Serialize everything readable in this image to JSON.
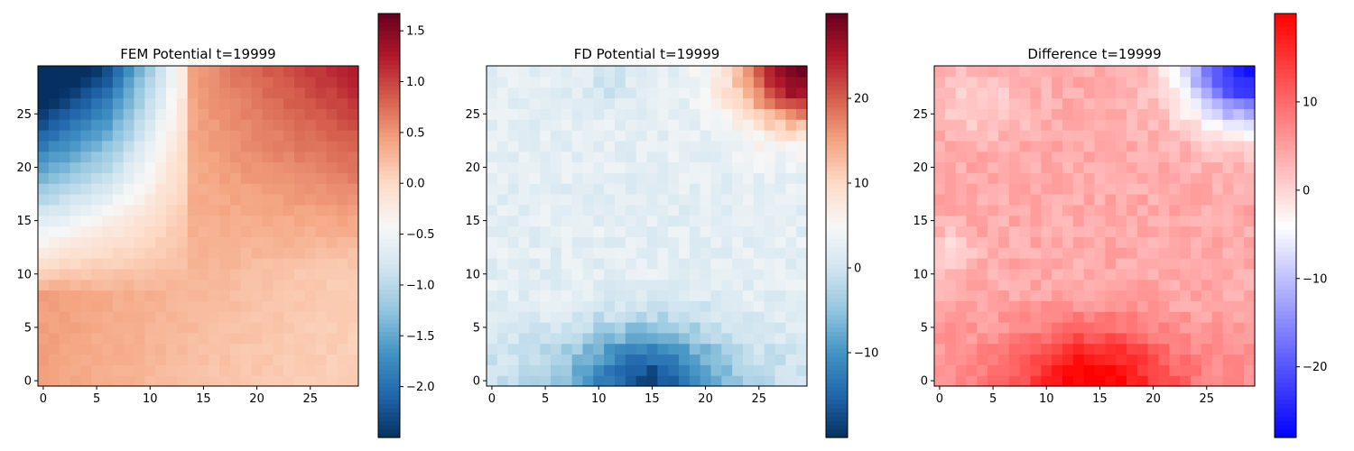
{
  "chart_data": [
    {
      "type": "heatmap",
      "title": "FEM Potential t=19999",
      "colormap": "RdBu_r",
      "grid_size": [
        30,
        30
      ],
      "x_range": [
        -0.5,
        29.5
      ],
      "y_range": [
        -0.5,
        29.5
      ],
      "x_ticks": [
        "0",
        "5",
        "10",
        "15",
        "20",
        "25"
      ],
      "y_ticks": [
        "0",
        "5",
        "10",
        "15",
        "20",
        "25"
      ],
      "colorbar": {
        "range": [
          -2.5,
          1.67
        ],
        "ticks": [
          {
            "value": -2.0,
            "label": "−2.0"
          },
          {
            "value": -1.5,
            "label": "−1.5"
          },
          {
            "value": -1.0,
            "label": "−1.0"
          },
          {
            "value": -0.5,
            "label": "−0.5"
          },
          {
            "value": 0.0,
            "label": "0.0"
          },
          {
            "value": 0.5,
            "label": "0.5"
          },
          {
            "value": 1.0,
            "label": "1.0"
          },
          {
            "value": 1.5,
            "label": "1.5"
          }
        ]
      },
      "field_description": "smooth field: ~-2.5 at top-left, ~+1.6 at top-right, ~+0.5 across bottom",
      "sample_values": {
        "bottom_left": 0.45,
        "bottom_right": 0.1,
        "top_left": -2.45,
        "top_right": 1.6,
        "center": 0.3
      }
    },
    {
      "type": "heatmap",
      "title": "FD Potential t=19999",
      "colormap": "RdBu_r",
      "grid_size": [
        30,
        30
      ],
      "x_range": [
        -0.5,
        29.5
      ],
      "y_range": [
        -0.5,
        29.5
      ],
      "x_ticks": [
        "0",
        "5",
        "10",
        "15",
        "20",
        "25"
      ],
      "y_ticks": [
        "0",
        "5",
        "10",
        "15",
        "20",
        "25"
      ],
      "colorbar": {
        "range": [
          -20,
          30
        ],
        "ticks": [
          {
            "value": -10,
            "label": "−10"
          },
          {
            "value": 0,
            "label": "0"
          },
          {
            "value": 10,
            "label": "10"
          },
          {
            "value": 20,
            "label": "20"
          }
        ]
      },
      "field_description": "mostly light blue (~0 to 3), darker blue minimum ~-20 near x=14,y=0, warm maximum ~29 at top-right corner",
      "sample_values": {
        "bottom_center_min": -19.5,
        "top_right_max": 29.0,
        "center": 1.0
      }
    },
    {
      "type": "heatmap",
      "title": "Difference t=19999",
      "colormap": "bwr",
      "grid_size": [
        30,
        30
      ],
      "x_range": [
        -0.5,
        29.5
      ],
      "y_range": [
        -0.5,
        29.5
      ],
      "x_ticks": [
        "0",
        "5",
        "10",
        "15",
        "20",
        "25"
      ],
      "y_ticks": [
        "0",
        "5",
        "10",
        "15",
        "20",
        "25"
      ],
      "colorbar": {
        "range": [
          -28,
          20
        ],
        "ticks": [
          {
            "value": -20,
            "label": "−20"
          },
          {
            "value": -10,
            "label": "−10"
          },
          {
            "value": 0,
            "label": "0"
          },
          {
            "value": 10,
            "label": "10"
          }
        ]
      },
      "field_description": "mostly light red (~3 to 8), strong red ~19 near x=14,y=0, blue minimum ~-27 at top-right corner",
      "sample_values": {
        "bottom_center_max": 19.0,
        "top_right_min": -27.5,
        "center": 4.0
      }
    }
  ]
}
